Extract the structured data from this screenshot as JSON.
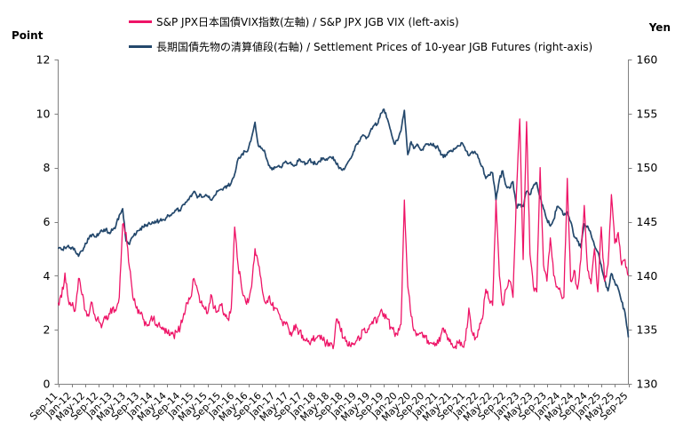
{
  "page": {
    "background": "#FFFFFF"
  },
  "chart_data": {
    "type": "line",
    "title": "",
    "x_start": "Sep-2011",
    "x_end": "Sep-2025",
    "x_interval": "monthly",
    "grid": false,
    "legend_position": "top",
    "axis_color": "#808080",
    "text_color": "#000000",
    "x_tick_labels": [
      "Sep-11",
      "Jan-12",
      "May-12",
      "Sep-12",
      "Jan-13",
      "May-13",
      "Sep-13",
      "Jan-14",
      "May-14",
      "Sep-14",
      "Jan-15",
      "May-15",
      "Sep-15",
      "Jan-16",
      "May-16",
      "Sep-16",
      "Jan-17",
      "May-17",
      "Sep-17",
      "Jan-18",
      "May-18",
      "Sep-18",
      "Jan-19",
      "May-19",
      "Sep-19",
      "Jan-20",
      "May-20",
      "Sep-20",
      "Jan-21",
      "May-21",
      "Sep-21",
      "Jan-22",
      "May-22",
      "Sep-22",
      "Jan-23",
      "May-23",
      "Sep-23",
      "Jan-24",
      "May-24",
      "Sep-24",
      "Jan-25",
      "May-25",
      "Sep-25"
    ],
    "axes": {
      "left": {
        "unit": "Point",
        "min": 0,
        "max": 12,
        "ticks": [
          0,
          2,
          4,
          6,
          8,
          10,
          12
        ]
      },
      "right": {
        "unit": "Yen",
        "min": 130,
        "max": 160,
        "ticks": [
          130,
          135,
          140,
          145,
          150,
          155,
          160
        ]
      }
    },
    "series": [
      {
        "name": "S&P JPX日本国債VIX指数(左軸) / S&P JPX JGB VIX (left-axis)",
        "axis": "left",
        "color": "#EE1467",
        "stroke_width": 1.3,
        "noise_amplitude": 0.16,
        "values": [
          3.0,
          3.2,
          4.1,
          3.1,
          2.9,
          2.7,
          3.9,
          3.3,
          2.7,
          2.5,
          3.0,
          2.4,
          2.3,
          2.2,
          2.4,
          2.6,
          2.8,
          2.7,
          3.2,
          5.9,
          5.6,
          4.3,
          3.2,
          2.8,
          2.6,
          2.4,
          2.2,
          2.3,
          2.4,
          2.2,
          2.1,
          2.0,
          1.9,
          1.8,
          1.8,
          1.9,
          2.1,
          2.6,
          3.0,
          3.2,
          3.9,
          3.5,
          3.0,
          2.8,
          2.6,
          3.3,
          2.8,
          2.7,
          2.9,
          2.6,
          2.4,
          2.8,
          5.8,
          4.4,
          3.6,
          3.2,
          3.0,
          3.6,
          5.0,
          4.4,
          3.6,
          3.0,
          3.2,
          2.9,
          2.8,
          2.6,
          2.3,
          2.2,
          2.0,
          1.9,
          2.2,
          1.9,
          1.8,
          1.6,
          1.5,
          1.6,
          1.7,
          1.8,
          1.6,
          1.5,
          1.4,
          1.3,
          2.4,
          2.1,
          1.7,
          1.6,
          1.4,
          1.5,
          1.6,
          1.7,
          2.0,
          1.9,
          2.2,
          2.4,
          2.3,
          2.7,
          2.6,
          2.4,
          2.1,
          1.9,
          1.8,
          2.2,
          6.8,
          3.6,
          2.5,
          2.0,
          1.8,
          1.9,
          1.7,
          1.6,
          1.5,
          1.4,
          1.5,
          1.9,
          2.0,
          1.7,
          1.5,
          1.4,
          1.5,
          1.4,
          1.6,
          2.8,
          1.9,
          1.7,
          2.0,
          2.4,
          3.5,
          3.1,
          2.9,
          6.8,
          4.0,
          2.9,
          3.5,
          3.8,
          3.2,
          7.0,
          9.8,
          4.6,
          9.7,
          4.8,
          3.6,
          3.4,
          8.0,
          4.4,
          3.8,
          5.4,
          4.0,
          3.6,
          3.4,
          3.2,
          7.6,
          3.8,
          4.2,
          3.5,
          4.6,
          6.6,
          4.2,
          3.7,
          5.0,
          3.4,
          5.8,
          3.8,
          4.4,
          7.0,
          5.2,
          5.6,
          4.4,
          4.6,
          4.0
        ]
      },
      {
        "name": "長期国債先物の清算値段(右軸) / Settlement Prices of 10-year JGB Futures (right-axis)",
        "axis": "right",
        "color": "#24486C",
        "stroke_width": 1.7,
        "noise_amplitude": 0.18,
        "values": [
          142.5,
          142.4,
          142.6,
          142.8,
          142.6,
          142.3,
          141.8,
          142.3,
          143.0,
          143.4,
          143.8,
          143.6,
          143.9,
          144.1,
          144.3,
          144.0,
          144.2,
          144.6,
          145.6,
          146.2,
          143.2,
          142.9,
          143.6,
          143.9,
          144.2,
          144.5,
          144.7,
          144.8,
          144.9,
          145.0,
          145.1,
          145.2,
          145.4,
          145.6,
          145.8,
          146.2,
          146.0,
          146.6,
          146.9,
          147.4,
          147.8,
          147.2,
          147.5,
          147.3,
          147.4,
          147.0,
          147.4,
          147.8,
          148.0,
          148.2,
          148.3,
          148.6,
          149.4,
          150.8,
          151.2,
          151.5,
          151.7,
          152.8,
          154.2,
          152.0,
          151.8,
          151.3,
          150.2,
          149.8,
          150.0,
          150.2,
          150.1,
          150.6,
          150.4,
          150.3,
          150.2,
          150.8,
          150.5,
          150.4,
          150.7,
          150.5,
          150.3,
          150.6,
          150.9,
          150.8,
          151.0,
          151.0,
          150.3,
          150.0,
          149.9,
          150.3,
          150.8,
          151.5,
          152.2,
          152.6,
          153.0,
          152.8,
          153.4,
          153.9,
          154.0,
          155.0,
          155.4,
          154.5,
          153.4,
          152.2,
          152.5,
          153.4,
          155.3,
          151.2,
          152.4,
          151.8,
          152.1,
          151.6,
          152.0,
          152.2,
          152.1,
          152.0,
          151.8,
          151.2,
          151.0,
          151.4,
          151.5,
          151.8,
          152.0,
          152.3,
          151.6,
          151.1,
          151.5,
          151.3,
          150.8,
          150.1,
          149.0,
          149.3,
          149.5,
          147.0,
          148.9,
          149.7,
          148.3,
          148.1,
          148.7,
          146.3,
          146.6,
          146.4,
          147.8,
          147.5,
          148.3,
          148.6,
          147.2,
          146.2,
          145.2,
          144.6,
          145.2,
          146.4,
          146.2,
          145.6,
          145.9,
          145.0,
          143.6,
          143.2,
          142.6,
          144.8,
          144.6,
          143.8,
          142.8,
          142.2,
          141.0,
          139.6,
          138.6,
          140.2,
          139.4,
          138.8,
          137.6,
          136.6,
          134.3
        ]
      }
    ]
  }
}
